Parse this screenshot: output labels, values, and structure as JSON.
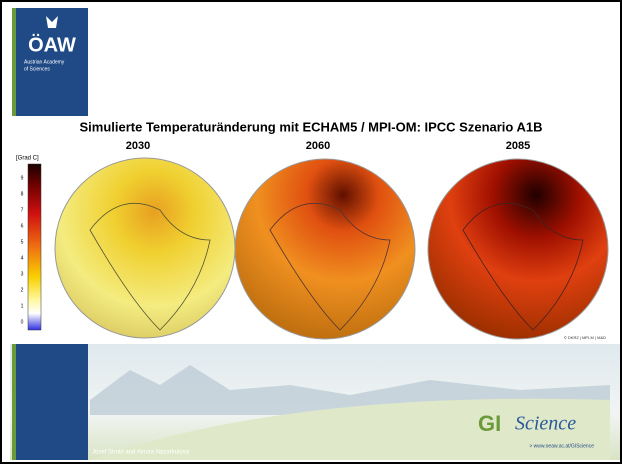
{
  "header": {
    "logo": "ÖAW",
    "academy": [
      "Austrian Academy",
      "of Sciences"
    ]
  },
  "figure": {
    "title": "Simulierte Temperaturänderung mit ECHAM5 / MPI-OM: IPCC Szenario A1B",
    "panels": [
      "2030",
      "2060",
      "2085"
    ],
    "colorbar": {
      "label": "[Grad C]",
      "ticks": [
        9,
        8,
        7,
        6,
        5,
        4,
        3,
        2,
        1,
        0
      ]
    },
    "credit": "© DKRZ | MPI-M | M&D"
  },
  "footer": {
    "logo_prefix": "GI",
    "logo_suffix": "Science",
    "url": "> www.oeaw.ac.at/GIScience",
    "author": "Josef Strobl and Ainura Nazarkulova"
  }
}
